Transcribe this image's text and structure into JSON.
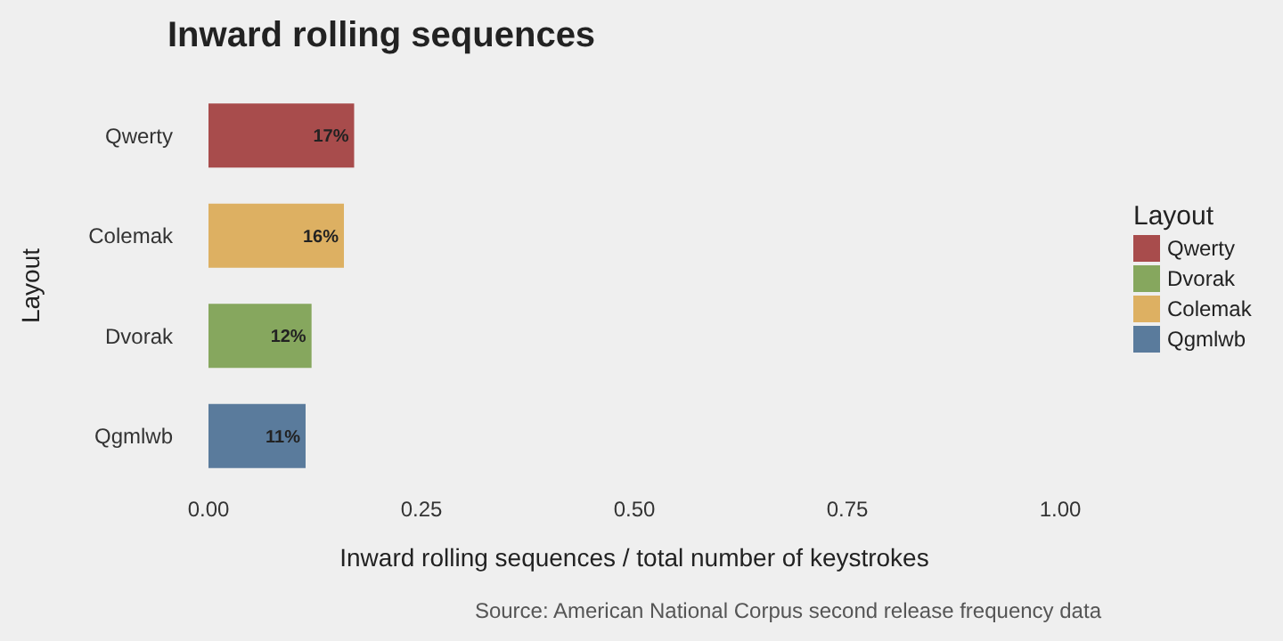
{
  "chart_data": {
    "type": "bar",
    "orientation": "horizontal",
    "title": "Inward rolling sequences",
    "xlabel": "Inward rolling sequences / total number of keystrokes",
    "ylabel": "Layout",
    "legend_title": "Layout",
    "legend": "right",
    "categories": [
      "Qwerty",
      "Colemak",
      "Dvorak",
      "Qgmlwb"
    ],
    "series": [
      {
        "name": "Qwerty",
        "color": "#a84c4c",
        "values": [
          0.171,
          null,
          null,
          null
        ],
        "value_labels": [
          "17%",
          null,
          null,
          null
        ]
      },
      {
        "name": "Dvorak",
        "color": "#86a75e",
        "values": [
          null,
          null,
          0.121,
          null
        ],
        "value_labels": [
          null,
          null,
          "12%",
          null
        ]
      },
      {
        "name": "Colemak",
        "color": "#ddb062",
        "values": [
          null,
          0.159,
          null,
          null
        ],
        "value_labels": [
          null,
          "16%",
          null,
          null
        ]
      },
      {
        "name": "Qgmlwb",
        "color": "#5a7b9c",
        "values": [
          null,
          null,
          null,
          0.114
        ],
        "value_labels": [
          null,
          null,
          null,
          "11%"
        ]
      }
    ],
    "xlim": [
      0,
      1
    ],
    "xticks": [
      {
        "value": 0,
        "label": "0.00"
      },
      {
        "value": 0.25,
        "label": "0.25"
      },
      {
        "value": 0.5,
        "label": "0.50"
      },
      {
        "value": 0.75,
        "label": "0.75"
      },
      {
        "value": 1,
        "label": "1.00"
      }
    ],
    "annotations": [
      "Source: American National Corpus second release frequency data"
    ]
  }
}
